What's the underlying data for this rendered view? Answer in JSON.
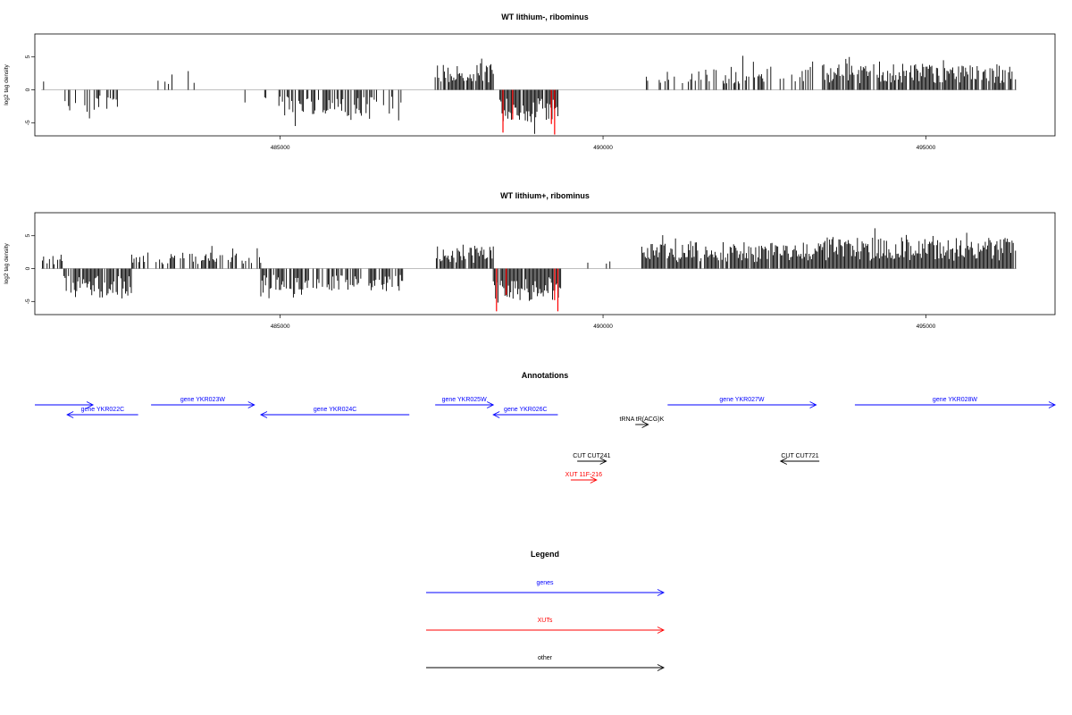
{
  "colors": {
    "gene": "#0000ff",
    "xut": "#ff0000",
    "other": "#000000",
    "highlight": "#ff0000"
  },
  "chart_data": [
    {
      "type": "bar",
      "title": "WT lithium-, ribominus",
      "ylabel": "log2 tag density",
      "xlim": [
        481200,
        497000
      ],
      "ylim": [
        -7,
        8.5
      ],
      "yticks": [
        {
          "v": 5,
          "label": "5"
        },
        {
          "v": 0,
          "label": "0"
        },
        {
          "v": -5,
          "label": "-5"
        }
      ],
      "xticks": [
        {
          "v": 485000,
          "label": "485000"
        },
        {
          "v": 490000,
          "label": "490000"
        },
        {
          "v": 495000,
          "label": "495000"
        }
      ],
      "segments": [
        {
          "start": 481300,
          "end": 481600,
          "sign": 1,
          "amp": 3.0,
          "density": 0.12,
          "seed": 11
        },
        {
          "start": 481650,
          "end": 482500,
          "sign": -1,
          "amp": 3.5,
          "density": 0.55,
          "seed": 12
        },
        {
          "start": 483000,
          "end": 484200,
          "sign": 1,
          "amp": 2.5,
          "density": 0.1,
          "seed": 13
        },
        {
          "start": 484400,
          "end": 484900,
          "sign": -1,
          "amp": 2.0,
          "density": 0.15,
          "seed": 14
        },
        {
          "start": 484980,
          "end": 486900,
          "sign": -1,
          "amp": 4.0,
          "density": 0.55,
          "seed": 15
        },
        {
          "start": 487400,
          "end": 488300,
          "sign": 1,
          "amp": 4.2,
          "density": 0.9,
          "seed": 16
        },
        {
          "start": 488400,
          "end": 489300,
          "sign": -1,
          "amp": 5.0,
          "density": 0.95,
          "seed": 17
        },
        {
          "start": 489300,
          "end": 489900,
          "sign": -1,
          "amp": 1.5,
          "density": 0.05,
          "seed": 18
        },
        {
          "start": 490600,
          "end": 493400,
          "sign": 1,
          "amp": 3.5,
          "density": 0.35,
          "seed": 19
        },
        {
          "start": 493400,
          "end": 496400,
          "sign": 1,
          "amp": 4.0,
          "density": 0.85,
          "seed": 20
        }
      ],
      "highlights": [
        {
          "x": 488450,
          "y": -6.5
        },
        {
          "x": 488600,
          "y": -4.5
        },
        {
          "x": 489250,
          "y": -6.8
        },
        {
          "x": 489200,
          "y": -5.2
        }
      ]
    },
    {
      "type": "bar",
      "title": "WT lithium+, ribominus",
      "ylabel": "log2 tag density",
      "xlim": [
        481200,
        497000
      ],
      "ylim": [
        -7,
        8.5
      ],
      "yticks": [
        {
          "v": 5,
          "label": "5"
        },
        {
          "v": 0,
          "label": "0"
        },
        {
          "v": -5,
          "label": "-5"
        }
      ],
      "xticks": [
        {
          "v": 485000,
          "label": "485000"
        },
        {
          "v": 490000,
          "label": "490000"
        },
        {
          "v": 495000,
          "label": "495000"
        }
      ],
      "segments": [
        {
          "start": 481300,
          "end": 481650,
          "sign": 1,
          "amp": 2.2,
          "density": 0.6,
          "seed": 31
        },
        {
          "start": 481650,
          "end": 482700,
          "sign": -1,
          "amp": 4.5,
          "density": 0.85,
          "seed": 32
        },
        {
          "start": 482700,
          "end": 484700,
          "sign": 1,
          "amp": 2.5,
          "density": 0.45,
          "seed": 33
        },
        {
          "start": 484700,
          "end": 486900,
          "sign": -1,
          "amp": 3.5,
          "density": 0.65,
          "seed": 34
        },
        {
          "start": 487400,
          "end": 488300,
          "sign": 1,
          "amp": 3.5,
          "density": 0.9,
          "seed": 35
        },
        {
          "start": 488300,
          "end": 489350,
          "sign": -1,
          "amp": 5.0,
          "density": 0.98,
          "seed": 36
        },
        {
          "start": 489350,
          "end": 490300,
          "sign": 1,
          "amp": 1.2,
          "density": 0.1,
          "seed": 37
        },
        {
          "start": 490600,
          "end": 493400,
          "sign": 1,
          "amp": 4.0,
          "density": 0.95,
          "seed": 38
        },
        {
          "start": 493400,
          "end": 496400,
          "sign": 1,
          "amp": 4.8,
          "density": 0.98,
          "seed": 39
        }
      ],
      "highlights": [
        {
          "x": 488350,
          "y": -6.5
        },
        {
          "x": 488500,
          "y": -4.0
        },
        {
          "x": 489300,
          "y": -6.5
        },
        {
          "x": 489250,
          "y": -4.8
        }
      ]
    }
  ],
  "annotations": {
    "title": "Annotations",
    "features": [
      {
        "label": "",
        "start": 481200,
        "end": 482100,
        "strand": "+",
        "type": "gene",
        "row": 0
      },
      {
        "label": "gene YKR022C",
        "start": 481700,
        "end": 482800,
        "strand": "-",
        "type": "gene",
        "row": 1
      },
      {
        "label": "gene YKR023W",
        "start": 483000,
        "end": 484600,
        "strand": "+",
        "type": "gene",
        "row": 0
      },
      {
        "label": "gene YKR024C",
        "start": 484700,
        "end": 487000,
        "strand": "-",
        "type": "gene",
        "row": 1
      },
      {
        "label": "gene YKR025W",
        "start": 487400,
        "end": 488300,
        "strand": "+",
        "type": "gene",
        "row": 0
      },
      {
        "label": "gene YKR026C",
        "start": 488300,
        "end": 489300,
        "strand": "-",
        "type": "gene",
        "row": 1
      },
      {
        "label": "tRNA tR(ACG)K",
        "start": 490500,
        "end": 490700,
        "strand": "+",
        "type": "other",
        "row": 2
      },
      {
        "label": "gene YKR027W",
        "start": 491000,
        "end": 493300,
        "strand": "+",
        "type": "gene",
        "row": 0
      },
      {
        "label": "gene YKR028W",
        "start": 493900,
        "end": 497000,
        "strand": "+",
        "type": "gene",
        "row": 0
      },
      {
        "label": "CUT CUT241",
        "start": 489600,
        "end": 490050,
        "strand": "+",
        "type": "other",
        "row": 4
      },
      {
        "label": "XUT 11F-216",
        "start": 489500,
        "end": 489900,
        "strand": "+",
        "type": "xut",
        "row": 5
      },
      {
        "label": "CUT CUT721",
        "start": 492750,
        "end": 493350,
        "strand": "-",
        "type": "other",
        "row": 4
      }
    ]
  },
  "legend": {
    "title": "Legend",
    "items": [
      {
        "label": "genes",
        "type": "gene"
      },
      {
        "label": "XUTs",
        "type": "xut"
      },
      {
        "label": "other",
        "type": "other"
      }
    ]
  }
}
